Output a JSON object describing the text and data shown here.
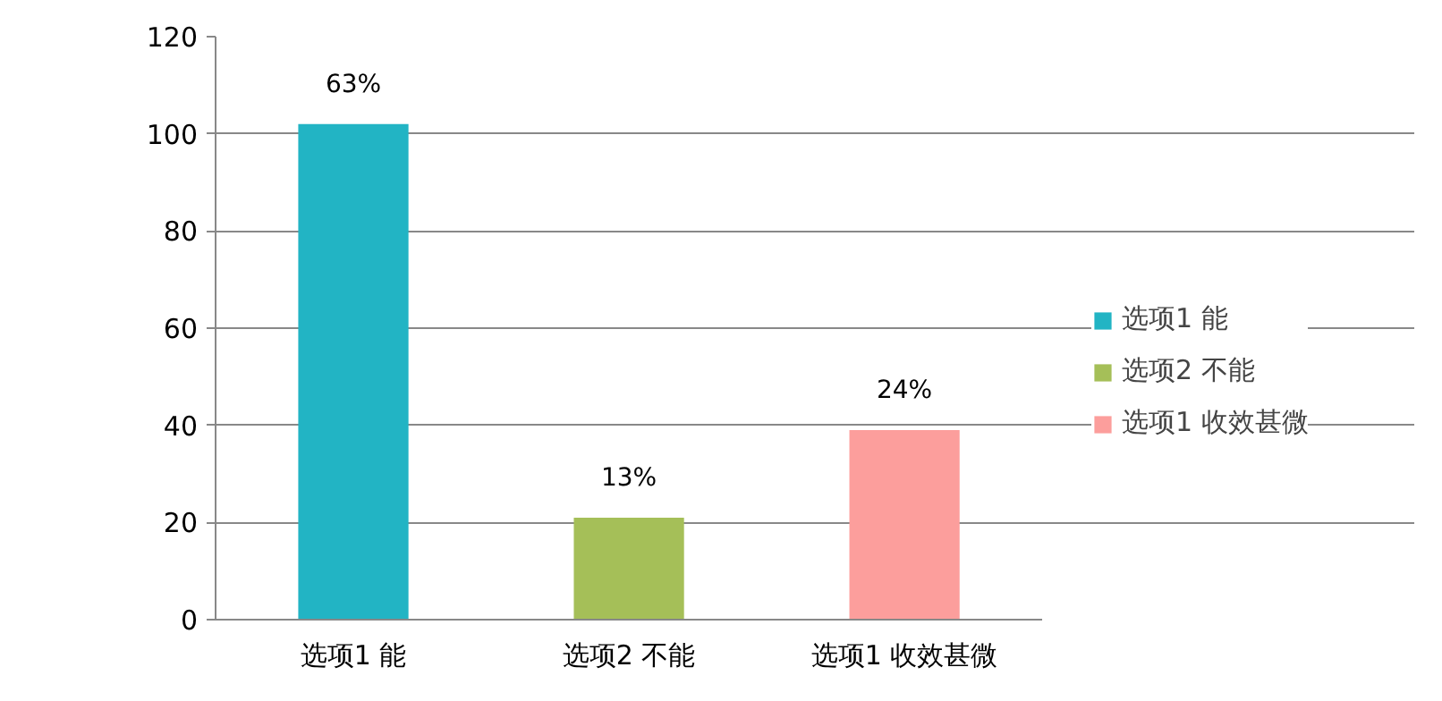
{
  "chart_data": {
    "type": "bar",
    "categories": [
      "选项1 能",
      "选项2 不能",
      "选项1 收效甚微"
    ],
    "series": [
      {
        "name": "选项1 能",
        "color": "#22b4c4",
        "values": [
          102,
          null,
          null
        ]
      },
      {
        "name": "选项2 不能",
        "color": "#a5bf58",
        "values": [
          null,
          21,
          null
        ]
      },
      {
        "name": "选项1 收效甚微",
        "color": "#fc9e9c",
        "values": [
          null,
          null,
          39
        ]
      }
    ],
    "annotations": [
      {
        "text": "63%",
        "x": "选项1 能",
        "y": 102
      },
      {
        "text": "13%",
        "x": "选项2 不能",
        "y": 21
      },
      {
        "text": "24%",
        "x": "选项1 收效甚微",
        "y": 39
      }
    ],
    "ylim": [
      0,
      120
    ],
    "yticks": [
      0,
      20,
      40,
      60,
      80,
      100,
      120
    ],
    "grid": "y",
    "legend": "right"
  }
}
